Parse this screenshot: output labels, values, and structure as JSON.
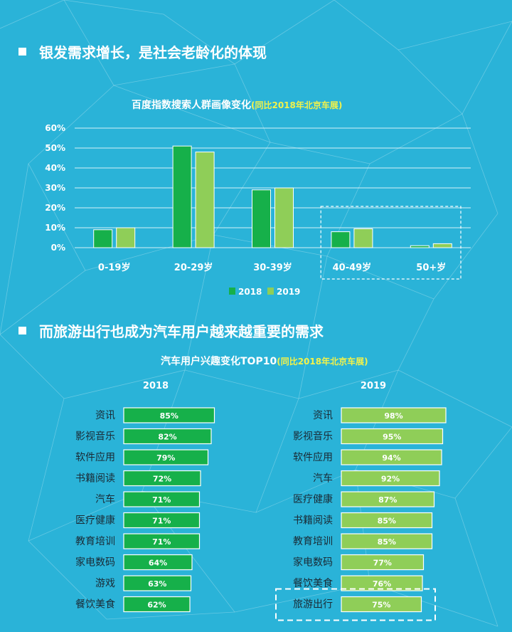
{
  "sections": [
    {
      "heading": "银发需求增长，是社会老龄化的体现"
    },
    {
      "heading": "而旅游出行也成为汽车用户越来越重要的需求"
    }
  ],
  "chart_data": [
    {
      "type": "bar",
      "title": "百度指数搜索人群画像变化",
      "subtitle": "(同比2018年北京车展)",
      "categories": [
        "0-19岁",
        "20-29岁",
        "30-39岁",
        "40-49岁",
        "50+岁"
      ],
      "series": [
        {
          "name": "2018",
          "values": [
            9,
            51,
            29,
            8,
            1
          ]
        },
        {
          "name": "2019",
          "values": [
            10,
            48,
            30,
            9.5,
            2
          ]
        }
      ],
      "ylim": [
        0,
        60
      ],
      "yticks": [
        "0%",
        "10%",
        "20%",
        "30%",
        "40%",
        "50%",
        "60%"
      ],
      "ytick_values": [
        0,
        10,
        20,
        30,
        40,
        50,
        60
      ],
      "grid": true,
      "legend": "bottom",
      "highlight_categories": [
        "40-49岁",
        "50+岁"
      ],
      "colors": {
        "2018": "#16b04a",
        "2019": "#8fce58"
      }
    },
    {
      "type": "bar",
      "orientation": "horizontal",
      "title": "汽车用户兴趣变化TOP10",
      "subtitle": "(同比2018年北京车展)",
      "panels": [
        {
          "name": "2018",
          "color": "#16b04a",
          "categories": [
            "资讯",
            "影视音乐",
            "软件应用",
            "书籍阅读",
            "汽车",
            "医疗健康",
            "教育培训",
            "家电数码",
            "游戏",
            "餐饮美食"
          ],
          "values": [
            85,
            82,
            79,
            72,
            71,
            71,
            71,
            64,
            63,
            62
          ],
          "labels": [
            "85%",
            "82%",
            "79%",
            "72%",
            "71%",
            "71%",
            "71%",
            "64%",
            "63%",
            "62%"
          ]
        },
        {
          "name": "2019",
          "color": "#8fce58",
          "categories": [
            "资讯",
            "影视音乐",
            "软件应用",
            "汽车",
            "医疗健康",
            "书籍阅读",
            "教育培训",
            "家电数码",
            "餐饮美食",
            "旅游出行"
          ],
          "values": [
            98,
            95,
            94,
            92,
            87,
            85,
            85,
            77,
            76,
            75
          ],
          "labels": [
            "98%",
            "95%",
            "94%",
            "92%",
            "87%",
            "85%",
            "85%",
            "77%",
            "76%",
            "75%"
          ]
        }
      ],
      "highlight_categories": [
        "旅游出行"
      ]
    }
  ]
}
